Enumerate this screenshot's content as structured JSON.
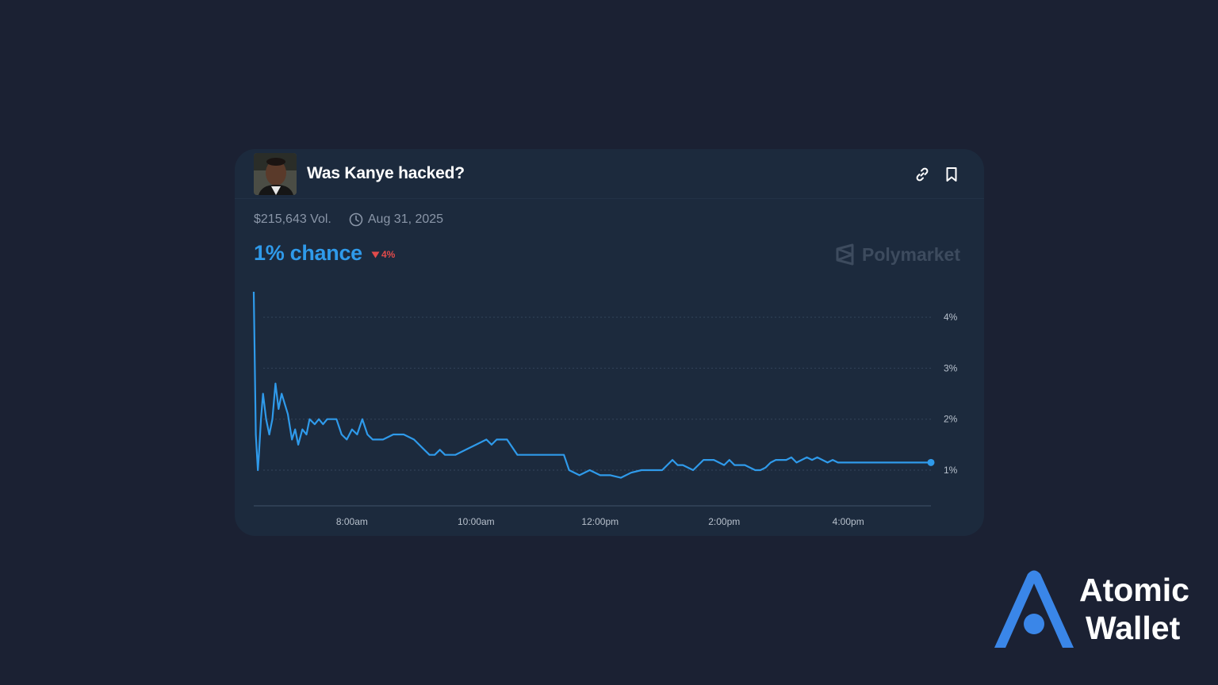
{
  "market": {
    "title": "Was Kanye hacked?",
    "volume": "$215,643 Vol.",
    "date": "Aug 31, 2025",
    "chance": "1% chance",
    "change": "4%",
    "brand": "Polymarket"
  },
  "icons": {
    "link": "link-icon",
    "bookmark": "bookmark-icon",
    "clock": "clock-icon",
    "change": "down-triangle-icon",
    "brand": "polymarket-logo-icon"
  },
  "colors": {
    "background": "#1b2133",
    "card": "#1c2a3d",
    "accent": "#2f9aea",
    "negative": "#e24b4b",
    "atomic_blue": "#3a86e8"
  },
  "footer_logo": {
    "line1": "Atomic",
    "line2": "Wallet"
  },
  "chart_data": {
    "type": "line",
    "title": "",
    "xlabel": "",
    "ylabel": "",
    "x_ticks": [
      "8:00am",
      "10:00am",
      "12:00pm",
      "2:00pm",
      "4:00pm"
    ],
    "y_ticks": [
      "1%",
      "2%",
      "3%",
      "4%"
    ],
    "y_tick_values": [
      1,
      2,
      3,
      4
    ],
    "xlim": [
      "6:25pm",
      "5:20pm"
    ],
    "ylim": [
      0.3,
      4.5
    ],
    "grid": "horizontal dotted",
    "series": [
      {
        "x": [
          "6:25am",
          "6:27am",
          "6:29am",
          "6:30am",
          "6:32am",
          "6:34am",
          "6:37am",
          "6:40am",
          "6:43am",
          "6:46am",
          "6:49am",
          "6:52am",
          "6:55am",
          "6:58am",
          "7:02am",
          "7:05am",
          "7:08am",
          "7:12am",
          "7:16am",
          "7:19am",
          "7:24am",
          "7:28am",
          "7:32am",
          "7:36am",
          "7:40am",
          "7:45am",
          "7:50am",
          "7:55am",
          "8:00am",
          "8:05am",
          "8:10am",
          "8:15am",
          "8:20am",
          "8:25am",
          "8:30am",
          "8:40am",
          "8:50am",
          "9:00am",
          "9:05am",
          "9:10am",
          "9:15am",
          "9:20am",
          "9:25am",
          "9:30am",
          "9:40am",
          "9:50am",
          "10:00am",
          "10:10am",
          "10:15am",
          "10:20am",
          "10:25am",
          "10:30am",
          "10:40am",
          "10:50am",
          "11:00am",
          "11:10am",
          "11:20am",
          "11:25am",
          "11:30am",
          "11:40am",
          "11:50am",
          "12:00pm",
          "12:10pm",
          "12:20pm",
          "12:30pm",
          "12:40pm",
          "12:50pm",
          "1:00pm",
          "1:10pm",
          "1:15pm",
          "1:20pm",
          "1:30pm",
          "1:40pm",
          "1:50pm",
          "2:00pm",
          "2:05pm",
          "2:10pm",
          "2:20pm",
          "2:30pm",
          "2:35pm",
          "2:40pm",
          "2:45pm",
          "2:50pm",
          "3:00pm",
          "3:05pm",
          "3:10pm",
          "3:15pm",
          "3:20pm",
          "3:25pm",
          "3:30pm",
          "3:40pm",
          "3:45pm",
          "3:50pm",
          "4:00pm",
          "4:10pm",
          "4:20pm",
          "4:25pm",
          "4:30pm",
          "4:40pm",
          "4:50pm",
          "5:00pm",
          "5:10pm",
          "5:20pm"
        ],
        "y": [
          4.5,
          1.7,
          1.0,
          1.3,
          2.0,
          2.5,
          2.0,
          1.7,
          2.0,
          2.7,
          2.2,
          2.5,
          2.3,
          2.1,
          1.6,
          1.8,
          1.5,
          1.8,
          1.7,
          2.0,
          1.9,
          2.0,
          1.9,
          2.0,
          2.0,
          2.0,
          1.7,
          1.6,
          1.8,
          1.7,
          2.0,
          1.7,
          1.6,
          1.6,
          1.6,
          1.7,
          1.7,
          1.6,
          1.5,
          1.4,
          1.3,
          1.3,
          1.4,
          1.3,
          1.3,
          1.4,
          1.5,
          1.6,
          1.5,
          1.6,
          1.6,
          1.6,
          1.3,
          1.3,
          1.3,
          1.3,
          1.3,
          1.3,
          1.0,
          0.9,
          1.0,
          0.9,
          0.9,
          0.85,
          0.95,
          1.0,
          1.0,
          1.0,
          1.2,
          1.1,
          1.1,
          1.0,
          1.2,
          1.2,
          1.1,
          1.2,
          1.1,
          1.1,
          1.0,
          1.0,
          1.05,
          1.15,
          1.2,
          1.2,
          1.25,
          1.15,
          1.2,
          1.25,
          1.2,
          1.25,
          1.15,
          1.2,
          1.15,
          1.15,
          1.15,
          1.15,
          1.15,
          1.15,
          1.15,
          1.15,
          1.15,
          1.15,
          1.15
        ]
      }
    ]
  }
}
